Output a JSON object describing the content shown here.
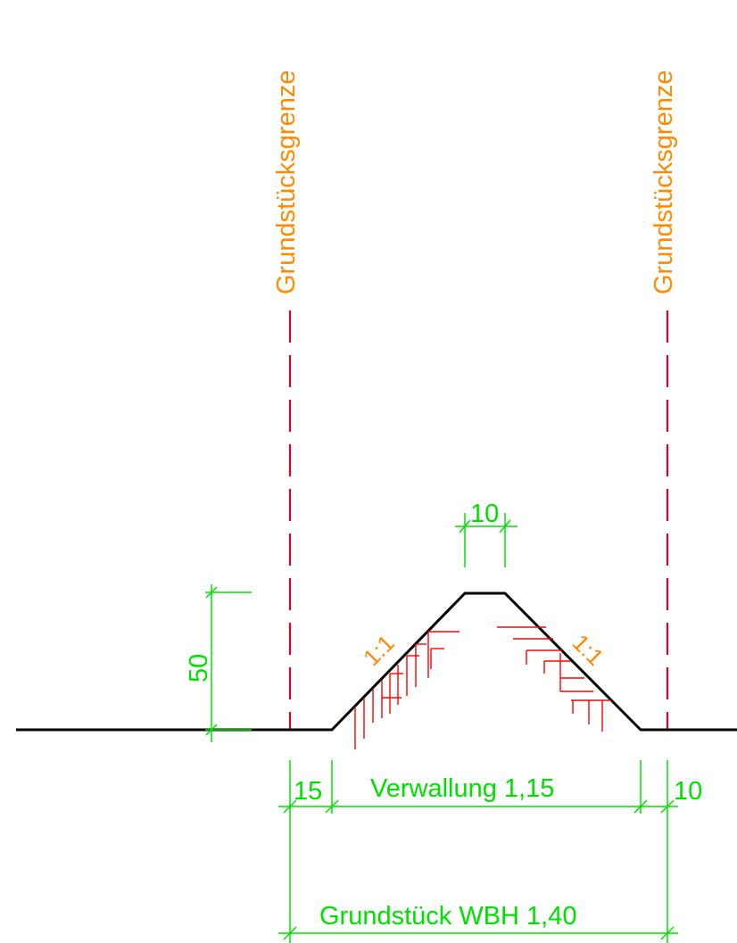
{
  "boundary": {
    "left_label": "Grundstücksgrenze",
    "right_label": "Grundstücksgrenze"
  },
  "slopes": {
    "left_ratio": "1:1",
    "right_ratio": "1:1"
  },
  "dimensions": {
    "crest_width": "10",
    "height": "50",
    "left_offset": "15",
    "wall_width": "Verwallung 1,15",
    "right_offset": "10",
    "plot_width": "Grundstück WBH 1,40"
  },
  "colors": {
    "profile": "#000000",
    "boundary_line": "#e0002a",
    "hatching": "#ff0000",
    "labels": "#ff8a00",
    "dimensions": "#00e000"
  }
}
